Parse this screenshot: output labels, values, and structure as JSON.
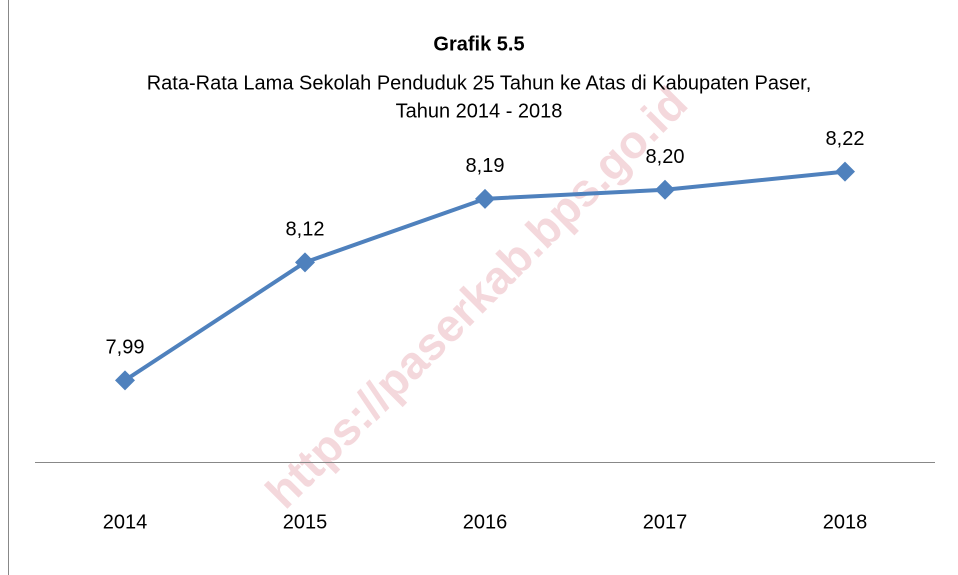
{
  "chart_data": {
    "type": "line",
    "title": "Grafik 5.5",
    "subtitle": [
      "Rata-Rata Lama Sekolah Penduduk 25 Tahun ke Atas di Kabupaten Paser,",
      "Tahun 2014 - 2018"
    ],
    "watermark": "https://paserkab.bps.go.id",
    "categories": [
      "2014",
      "2015",
      "2016",
      "2017",
      "2018"
    ],
    "values": [
      7.99,
      8.12,
      8.19,
      8.2,
      8.22
    ],
    "value_labels": [
      "7,99",
      "8,12",
      "8,19",
      "8,20",
      "8,22"
    ],
    "color": "#4f81bd",
    "ylim": [
      7.9,
      8.3
    ]
  }
}
